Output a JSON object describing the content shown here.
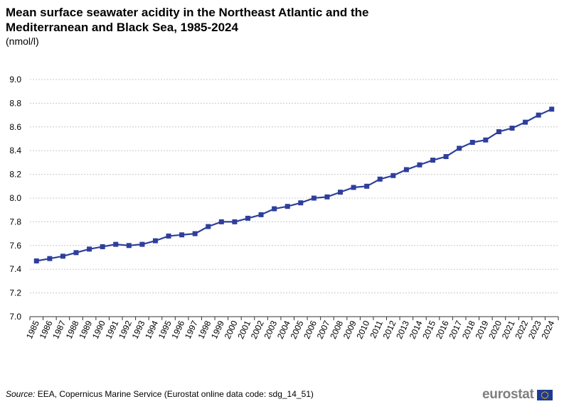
{
  "title": "Mean surface seawater acidity in the Northeast Atlantic and the Mediterranean and Black Sea, 1985-2024",
  "unit": "(nmol/l)",
  "source": {
    "label": "Source:",
    "text": " EEA, Copernicus Marine Service (Eurostat online data code: sdg_14_51)"
  },
  "logo": {
    "text": "eurostat",
    "icon": "eu-flag-icon"
  },
  "colors": {
    "series": "#2e3f9b",
    "grid": "#c8c8c8",
    "axis": "#333333"
  },
  "chart_data": {
    "type": "line",
    "title": "Mean surface seawater acidity in the Northeast Atlantic and the Mediterranean and Black Sea, 1985-2024",
    "ylabel": "(nmol/l)",
    "xlabel": "",
    "ylim": [
      7.0,
      9.0
    ],
    "yticks": [
      "7.0",
      "7.2",
      "7.4",
      "7.6",
      "7.8",
      "8.0",
      "8.2",
      "8.4",
      "8.6",
      "8.8",
      "9.0"
    ],
    "grid": true,
    "legend": "none",
    "x": [
      "1985",
      "1986",
      "1987",
      "1988",
      "1989",
      "1990",
      "1991",
      "1992",
      "1993",
      "1994",
      "1995",
      "1996",
      "1997",
      "1998",
      "1999",
      "2000",
      "2001",
      "2002",
      "2003",
      "2004",
      "2005",
      "2006",
      "2007",
      "2008",
      "2009",
      "2010",
      "2011",
      "2012",
      "2013",
      "2014",
      "2015",
      "2016",
      "2017",
      "2018",
      "2019",
      "2020",
      "2021",
      "2022",
      "2023",
      "2024"
    ],
    "series": [
      {
        "values": [
          7.47,
          7.49,
          7.51,
          7.54,
          7.57,
          7.59,
          7.61,
          7.6,
          7.61,
          7.64,
          7.68,
          7.69,
          7.7,
          7.76,
          7.8,
          7.8,
          7.83,
          7.86,
          7.91,
          7.93,
          7.96,
          8.0,
          8.01,
          8.05,
          8.09,
          8.1,
          8.16,
          8.19,
          8.24,
          8.28,
          8.32,
          8.35,
          8.42,
          8.47,
          8.49,
          8.56,
          8.59,
          8.64,
          8.7,
          8.75
        ]
      }
    ]
  }
}
